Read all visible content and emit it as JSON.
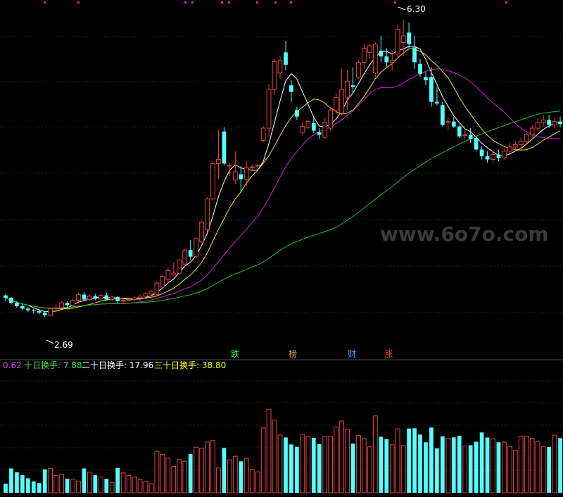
{
  "chart_data": {
    "type": "candlestick",
    "price_panel": {
      "high_label": "6.30",
      "low_label": "2.69",
      "ylim": [
        2.4,
        6.45
      ],
      "up_color": "#e84040",
      "down_color": "#54ffff",
      "ohlc": [
        [
          2.95,
          2.97,
          2.88,
          2.92
        ],
        [
          2.92,
          2.93,
          2.84,
          2.86
        ],
        [
          2.86,
          2.88,
          2.8,
          2.82
        ],
        [
          2.82,
          2.84,
          2.77,
          2.79
        ],
        [
          2.79,
          2.81,
          2.75,
          2.77
        ],
        [
          2.77,
          2.79,
          2.73,
          2.76
        ],
        [
          2.76,
          2.78,
          2.72,
          2.74
        ],
        [
          2.74,
          2.76,
          2.69,
          2.71
        ],
        [
          2.71,
          2.8,
          2.7,
          2.79
        ],
        [
          2.79,
          2.85,
          2.76,
          2.8
        ],
        [
          2.8,
          2.88,
          2.78,
          2.86
        ],
        [
          2.86,
          2.88,
          2.8,
          2.83
        ],
        [
          2.83,
          2.91,
          2.82,
          2.89
        ],
        [
          2.89,
          2.98,
          2.85,
          2.96
        ],
        [
          2.96,
          2.99,
          2.88,
          2.9
        ],
        [
          2.9,
          2.96,
          2.88,
          2.94
        ],
        [
          2.94,
          2.97,
          2.89,
          2.91
        ],
        [
          2.91,
          2.97,
          2.9,
          2.95
        ],
        [
          2.95,
          2.98,
          2.89,
          2.9
        ],
        [
          2.9,
          2.95,
          2.88,
          2.93
        ],
        [
          2.93,
          2.94,
          2.86,
          2.88
        ],
        [
          2.88,
          2.92,
          2.86,
          2.89
        ],
        [
          2.89,
          2.92,
          2.87,
          2.9
        ],
        [
          2.9,
          2.94,
          2.88,
          2.92
        ],
        [
          2.92,
          2.96,
          2.88,
          2.94
        ],
        [
          2.94,
          2.99,
          2.9,
          2.97
        ],
        [
          2.97,
          3.02,
          2.94,
          3.0
        ],
        [
          2.96,
          3.12,
          2.95,
          3.1
        ],
        [
          3.05,
          3.2,
          3.03,
          3.18
        ],
        [
          3.14,
          3.28,
          3.1,
          3.25
        ],
        [
          3.2,
          3.35,
          3.18,
          3.22
        ],
        [
          3.22,
          3.4,
          3.2,
          3.38
        ],
        [
          3.33,
          3.52,
          3.3,
          3.5
        ],
        [
          3.5,
          3.62,
          3.38,
          3.42
        ],
        [
          3.42,
          3.66,
          3.4,
          3.64
        ],
        [
          3.6,
          3.86,
          3.58,
          3.84
        ],
        [
          3.75,
          4.14,
          3.72,
          4.12
        ],
        [
          4.12,
          4.58,
          4.1,
          4.55
        ],
        [
          4.55,
          4.96,
          4.36,
          4.6
        ],
        [
          4.94,
          4.99,
          4.53,
          4.55
        ],
        [
          4.52,
          4.56,
          4.4,
          4.53
        ],
        [
          4.35,
          4.7,
          4.3,
          4.45
        ],
        [
          4.42,
          4.52,
          4.2,
          4.36
        ],
        [
          4.36,
          4.58,
          4.28,
          4.5
        ],
        [
          4.5,
          4.54,
          4.46,
          4.51
        ],
        [
          4.52,
          4.54,
          4.5,
          4.53
        ],
        [
          4.83,
          5.0,
          4.81,
          4.98
        ],
        [
          4.98,
          5.52,
          4.88,
          5.45
        ],
        [
          5.45,
          5.82,
          5.38,
          5.79
        ],
        [
          5.65,
          5.85,
          5.58,
          5.8
        ],
        [
          5.9,
          6.04,
          5.68,
          5.75
        ],
        [
          5.5,
          5.56,
          5.3,
          5.42
        ],
        [
          5.2,
          5.24,
          5.08,
          5.12
        ],
        [
          4.93,
          5.05,
          4.89,
          5.0
        ],
        [
          4.99,
          5.08,
          4.97,
          5.06
        ],
        [
          5.04,
          5.1,
          4.92,
          4.95
        ],
        [
          4.93,
          4.98,
          4.85,
          4.9
        ],
        [
          4.87,
          5.1,
          4.85,
          5.05
        ],
        [
          4.98,
          5.24,
          4.95,
          5.2
        ],
        [
          5.19,
          5.4,
          5.16,
          5.35
        ],
        [
          5.16,
          5.7,
          5.14,
          5.45
        ],
        [
          5.35,
          5.68,
          5.2,
          5.55
        ],
        [
          5.5,
          5.72,
          5.4,
          5.48
        ],
        [
          5.6,
          5.8,
          5.58,
          5.78
        ],
        [
          5.78,
          6.0,
          5.7,
          5.95
        ],
        [
          5.9,
          6.0,
          5.82,
          5.98
        ],
        [
          5.65,
          6.02,
          5.6,
          6.0
        ],
        [
          5.92,
          6.1,
          5.78,
          5.85
        ],
        [
          5.85,
          5.95,
          5.72,
          5.78
        ],
        [
          5.78,
          5.92,
          5.68,
          5.8
        ],
        [
          5.88,
          6.24,
          5.82,
          6.18
        ],
        [
          6.02,
          6.3,
          5.85,
          6.1
        ],
        [
          6.14,
          6.26,
          5.95,
          6.0
        ],
        [
          5.96,
          6.1,
          5.7,
          5.78
        ],
        [
          5.76,
          5.82,
          5.6,
          5.64
        ],
        [
          5.6,
          5.66,
          5.5,
          5.56
        ],
        [
          5.6,
          5.72,
          5.24,
          5.3
        ],
        [
          5.3,
          5.48,
          5.26,
          5.28
        ],
        [
          5.26,
          5.3,
          5.0,
          5.02
        ],
        [
          5.05,
          5.1,
          4.96,
          5.06
        ],
        [
          5.06,
          5.12,
          4.98,
          5.0
        ],
        [
          5.0,
          5.02,
          4.86,
          4.88
        ],
        [
          4.9,
          4.96,
          4.84,
          4.9
        ],
        [
          4.9,
          4.98,
          4.8,
          4.85
        ],
        [
          4.86,
          4.88,
          4.7,
          4.72
        ],
        [
          4.72,
          4.76,
          4.6,
          4.64
        ],
        [
          4.64,
          4.7,
          4.56,
          4.6
        ],
        [
          4.6,
          4.7,
          4.55,
          4.66
        ],
        [
          4.66,
          4.72,
          4.58,
          4.62
        ],
        [
          4.62,
          4.72,
          4.6,
          4.7
        ],
        [
          4.7,
          4.8,
          4.66,
          4.75
        ],
        [
          4.75,
          4.82,
          4.7,
          4.78
        ],
        [
          4.78,
          4.86,
          4.72,
          4.82
        ],
        [
          4.82,
          4.92,
          4.78,
          4.9
        ],
        [
          4.9,
          5.02,
          4.86,
          4.98
        ],
        [
          4.98,
          5.1,
          4.94,
          5.05
        ],
        [
          5.05,
          5.14,
          5.0,
          5.08
        ],
        [
          5.08,
          5.14,
          4.98,
          5.02
        ],
        [
          5.02,
          5.1,
          4.98,
          5.06
        ],
        [
          5.06,
          5.12,
          4.99,
          5.03
        ]
      ]
    },
    "event_tags": [
      "跌",
      "榜",
      "财",
      "涨"
    ],
    "turnover_panel": {
      "labels": [
        {
          "text": "0.62",
          "color": "#e040e0"
        },
        {
          "text": "十日换手: 7.88",
          "color": "#40e040"
        },
        {
          "text": "二十日换手: 17.96",
          "color": "#ffffff"
        },
        {
          "text": "三十日换手: 38.80",
          "color": "#ffff00"
        }
      ],
      "ylim": [
        0,
        100
      ]
    },
    "watermark": "www.6o7o.com",
    "colors": {
      "background": "#000000",
      "grid": "#1a3a6a",
      "ma_white": "#ffffff",
      "ma_yellow": "#e8e820",
      "ma_magenta": "#d020d0",
      "ma_green": "#20c020"
    }
  }
}
